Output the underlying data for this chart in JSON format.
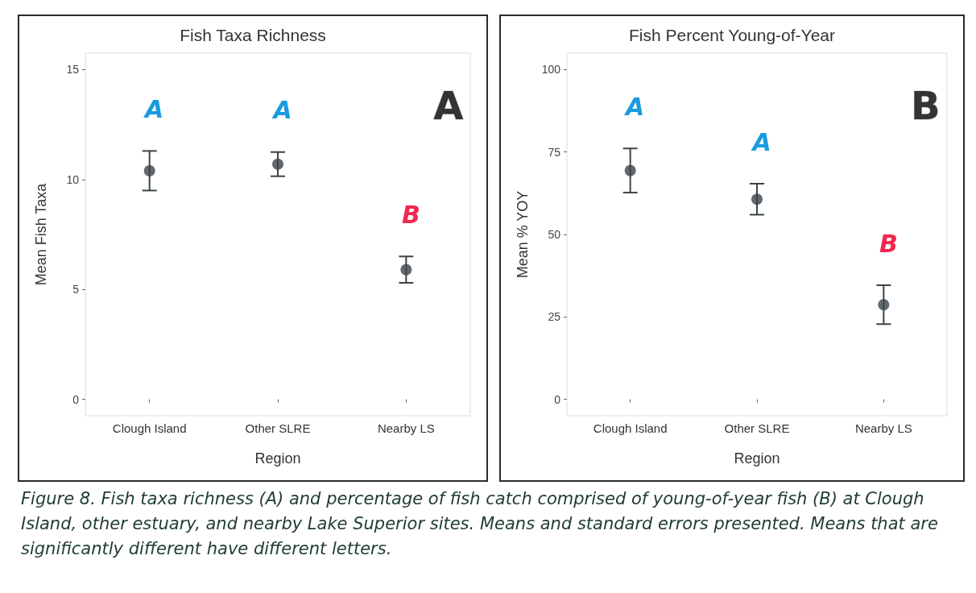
{
  "chart_data": [
    {
      "type": "scatter",
      "title": "Fish Taxa Richness",
      "xlabel": "Region",
      "ylabel": "Mean Fish Taxa",
      "categories": [
        "Clough Island",
        "Other SLRE",
        "Nearby LS"
      ],
      "series": [
        {
          "color": "#3a4449",
          "values": [
            10.4,
            10.7,
            5.9
          ],
          "errors": [
            0.9,
            0.55,
            0.6
          ]
        }
      ],
      "ylim": [
        -0.75,
        15.75
      ],
      "yticks": [
        0,
        5,
        10,
        15
      ],
      "grid": false,
      "marker": "circle",
      "annotations": [
        "A",
        "A",
        "A",
        "B",
        "Figure 8. Fish taxa richness (A) and percentage of fish catch comprised of young-of-year fish (B) at Clough Island, other estuary, and nearby Lake Superior sites. Means and standard errors presented. Means that are significantly different have different letters."
      ]
    },
    {
      "type": "scatter",
      "title": "Fish Percent Young-of-Year",
      "xlabel": "Region",
      "ylabel": "Mean % YOY",
      "categories": [
        "Clough Island",
        "Other SLRE",
        "Nearby LS"
      ],
      "series": [
        {
          "color": "#3a4449",
          "values": [
            69.4,
            60.7,
            28.7
          ],
          "errors": [
            6.7,
            4.7,
            5.9
          ]
        }
      ],
      "ylim": [
        -5,
        105
      ],
      "yticks": [
        0,
        25,
        50,
        75,
        100
      ],
      "grid": false,
      "marker": "circle",
      "annotations": [
        "B",
        "A",
        "A",
        "B"
      ]
    }
  ]
}
